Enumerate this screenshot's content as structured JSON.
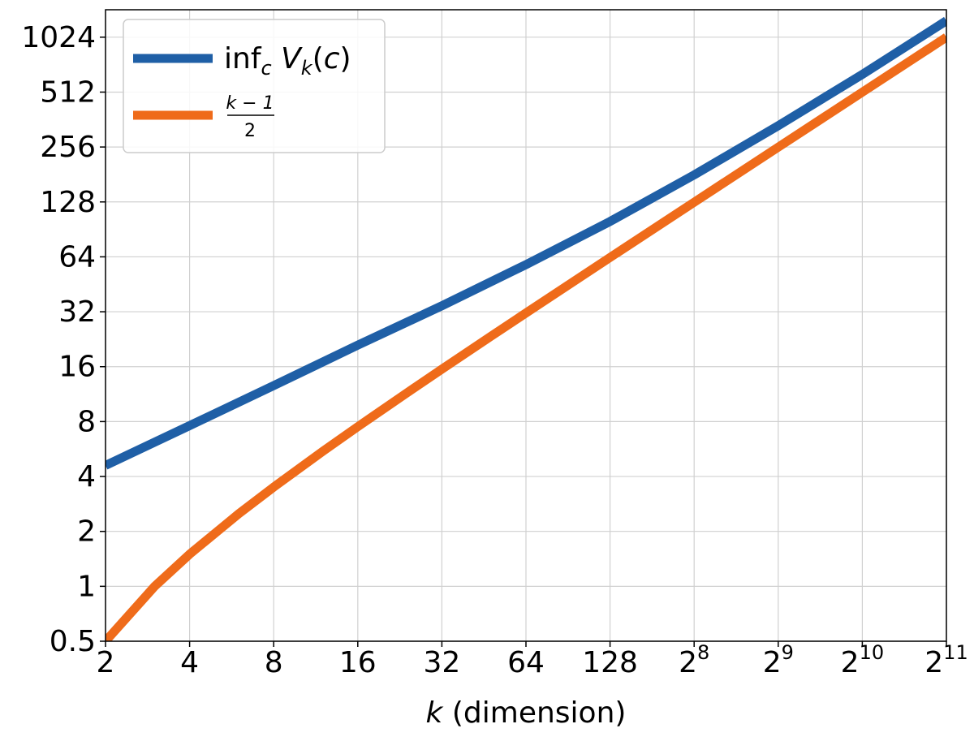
{
  "chart_data": {
    "type": "line",
    "xlabel_var": "k",
    "xlabel_rest": " (dimension)",
    "x_scale": "log2",
    "y_scale": "log2",
    "xlim": [
      2,
      2048
    ],
    "ylim": [
      0.5,
      1448
    ],
    "grid": true,
    "legend_position": "top-left",
    "x_ticks": [
      {
        "value": 2,
        "label": "2"
      },
      {
        "value": 4,
        "label": "4"
      },
      {
        "value": 8,
        "label": "8"
      },
      {
        "value": 16,
        "label": "16"
      },
      {
        "value": 32,
        "label": "32"
      },
      {
        "value": 64,
        "label": "64"
      },
      {
        "value": 128,
        "label": "128"
      },
      {
        "value": 256,
        "base": "2",
        "exp": "8"
      },
      {
        "value": 512,
        "base": "2",
        "exp": "9"
      },
      {
        "value": 1024,
        "base": "2",
        "exp": "10"
      },
      {
        "value": 2048,
        "base": "2",
        "exp": "11"
      }
    ],
    "y_ticks": [
      {
        "value": 0.5,
        "label": "0.5"
      },
      {
        "value": 1,
        "label": "1"
      },
      {
        "value": 2,
        "label": "2"
      },
      {
        "value": 4,
        "label": "4"
      },
      {
        "value": 8,
        "label": "8"
      },
      {
        "value": 16,
        "label": "16"
      },
      {
        "value": 32,
        "label": "32"
      },
      {
        "value": 64,
        "label": "64"
      },
      {
        "value": 128,
        "label": "128"
      },
      {
        "value": 256,
        "label": "256"
      },
      {
        "value": 512,
        "label": "512"
      },
      {
        "value": 1024,
        "label": "1024"
      }
    ],
    "series": [
      {
        "name": "inf_c V_k(c)",
        "legend_label": {
          "lead": "inf",
          "sub1": "c",
          "var": " V",
          "sub2": "k",
          "tail": "(c)"
        },
        "color": "#1f5fa6",
        "x": [
          2,
          4,
          8,
          16,
          32,
          64,
          128,
          256,
          512,
          1024,
          2048
        ],
        "y": [
          4.6,
          7.6,
          12.6,
          21,
          34.5,
          58,
          100,
          180,
          335,
          640,
          1260
        ]
      },
      {
        "name": "(k-1)/2",
        "legend_label": {
          "num": "k − 1",
          "den": "2"
        },
        "color": "#ef6b1a",
        "x": [
          2,
          3,
          4,
          6,
          8,
          12,
          16,
          24,
          32,
          48,
          64,
          128,
          256,
          512,
          1024,
          2048
        ],
        "y": [
          0.5,
          1,
          1.5,
          2.5,
          3.5,
          5.5,
          7.5,
          11.5,
          15.5,
          23.5,
          31.5,
          63.5,
          127.5,
          255.5,
          511.5,
          1023.5
        ]
      }
    ]
  }
}
